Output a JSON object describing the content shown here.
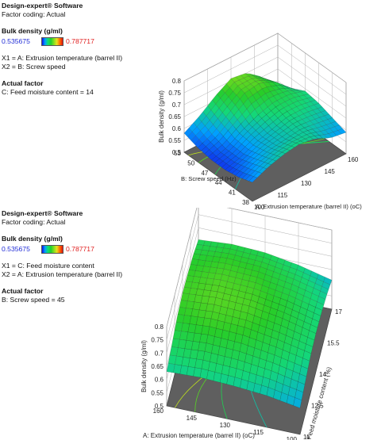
{
  "colors": {
    "min_color": "#1f2bd6",
    "max_color": "#e02020",
    "floor": "#5f5f5f",
    "grid": "#9a9a9a"
  },
  "chart_data": [
    {
      "type": "surface3d",
      "header": {
        "software": "Design-expert® Software",
        "coding": "Factor coding: Actual",
        "response_title": "Bulk density (g/ml)",
        "min": "0.535675",
        "max": "0.787717",
        "x1": "X1 = A: Extrusion temperature  (barrel  II)",
        "x2": "X2 = B: Screw speed",
        "actual_title": "Actual factor",
        "actual_value": "C: Feed moisture content = 14"
      },
      "zlabel": "Bulk density (g/ml)",
      "xlabel": "A: Extrusion temperature (barrel II) (oC)",
      "ylabel": "B: Screw speed (Hz)",
      "zticks": [
        "0.5",
        "0.55",
        "0.6",
        "0.65",
        "0.7",
        "0.75",
        "0.8"
      ],
      "xticks": [
        "100",
        "115",
        "130",
        "145",
        "160"
      ],
      "yticks": [
        "38",
        "41",
        "44",
        "47",
        "50",
        "53"
      ],
      "zlim": [
        0.5,
        0.8
      ],
      "xlim": [
        100,
        160
      ],
      "ylim": [
        38,
        53
      ],
      "grid": [
        [
          0.58,
          0.61,
          0.63,
          0.64,
          0.63,
          0.6,
          0.59
        ],
        [
          0.56,
          0.59,
          0.61,
          0.62,
          0.63,
          0.62,
          0.61
        ],
        [
          0.55,
          0.57,
          0.6,
          0.62,
          0.64,
          0.64,
          0.63
        ],
        [
          0.55,
          0.57,
          0.61,
          0.64,
          0.66,
          0.66,
          0.64
        ],
        [
          0.56,
          0.59,
          0.64,
          0.69,
          0.7,
          0.67,
          0.61
        ],
        [
          0.58,
          0.62,
          0.67,
          0.71,
          0.7,
          0.65,
          0.56
        ]
      ]
    },
    {
      "type": "surface3d",
      "header": {
        "software": "Design-expert® Software",
        "coding": "Factor coding: Actual",
        "response_title": "Bulk density (g/ml)",
        "min": "0.535675",
        "max": "0.787717",
        "x1": "X1 = C: Feed moisture content",
        "x2": "X2 = A: Extrusion temperature  (barrel  II)",
        "actual_title": "Actual factor",
        "actual_value": "B: Screw speed  = 45"
      },
      "zlabel": "Bulk density (g/ml)",
      "xlabel": "C: Feed moisture content (%)",
      "ylabel": "A: Extrusion temperature (barrel II) (oC)",
      "zticks": [
        "0.5",
        "0.55",
        "0.6",
        "0.65",
        "0.7",
        "0.75",
        "0.8"
      ],
      "xticks": [
        "11",
        "12.5",
        "14",
        "15.5",
        "17"
      ],
      "yticks": [
        "100",
        "115",
        "130",
        "145",
        "160"
      ],
      "zlim": [
        0.5,
        0.8
      ],
      "xlim": [
        11,
        17
      ],
      "ylim": [
        100,
        160
      ],
      "grid": [
        [
          0.6,
          0.62,
          0.64,
          0.645,
          0.64,
          0.63,
          0.61
        ],
        [
          0.62,
          0.645,
          0.665,
          0.675,
          0.67,
          0.66,
          0.64
        ],
        [
          0.63,
          0.66,
          0.685,
          0.695,
          0.69,
          0.68,
          0.66
        ],
        [
          0.635,
          0.665,
          0.69,
          0.7,
          0.695,
          0.685,
          0.665
        ],
        [
          0.63,
          0.655,
          0.68,
          0.69,
          0.685,
          0.675,
          0.655
        ]
      ]
    }
  ]
}
